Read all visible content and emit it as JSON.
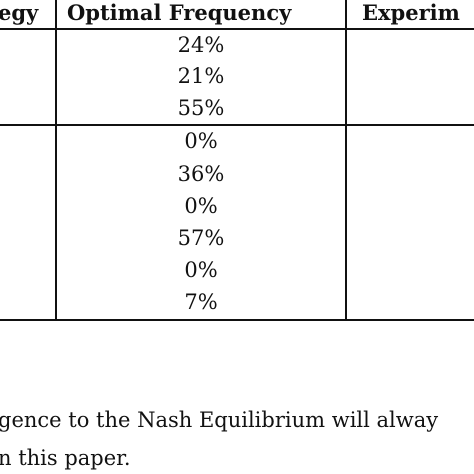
{
  "table": {
    "headers": {
      "strategy": "egy",
      "optimal": "Optimal Frequency",
      "experimental": "Experim"
    },
    "group1": [
      "24%",
      "21%",
      "55%"
    ],
    "group2": [
      "0%",
      "36%",
      "0%",
      "57%",
      "0%",
      "7%"
    ]
  },
  "text": {
    "line1": "gence to the Nash Equilibrium will alway",
    "line2": "n this paper."
  }
}
